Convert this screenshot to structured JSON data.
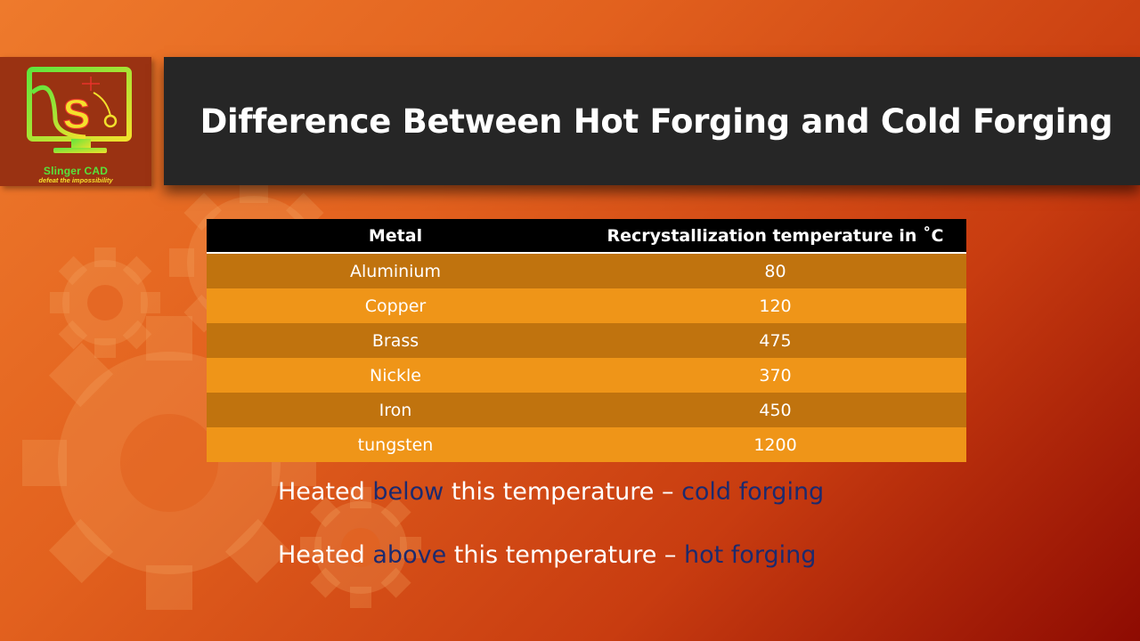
{
  "logo": {
    "name": "Slinger CAD",
    "tagline": "defeat the impossibility",
    "letter": "S"
  },
  "slide": {
    "title": "Difference Between Hot Forging and Cold Forging"
  },
  "table": {
    "headers": [
      "Metal",
      "Recrystallization temperature in ˚C"
    ],
    "rows": [
      [
        "Aluminium",
        "80"
      ],
      [
        "Copper",
        "120"
      ],
      [
        "Brass",
        "475"
      ],
      [
        "Nickle",
        "370"
      ],
      [
        "Iron",
        "450"
      ],
      [
        "tungsten",
        "1200"
      ]
    ]
  },
  "notes": [
    {
      "lead": "Heated ",
      "keyword": "below",
      "middle": " this temperature – ",
      "result": "cold forging"
    },
    {
      "lead": "Heated ",
      "keyword": "above",
      "middle": " this temperature – ",
      "result": "hot forging"
    }
  ],
  "colors": {
    "title_bar": "#262626",
    "table_header": "#000000",
    "row_dark": "#c0730e",
    "row_light": "#ef9518",
    "highlight_text": "#1c2a6e",
    "logo_green": "#58e23a",
    "logo_yellow": "#f4e02c"
  }
}
